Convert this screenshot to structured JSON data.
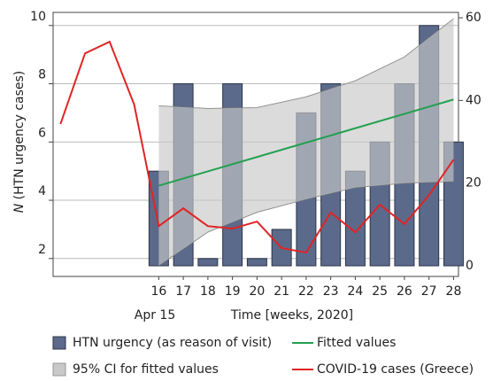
{
  "chart_data": {
    "type": "combo",
    "y_label_var": "N",
    "y_label": "(HTN urgency cases)",
    "x_label": "Time [weeks, 2020]",
    "x_annotation": "Apr 15",
    "xlim": [
      11.7,
      28.2
    ],
    "xticks": [
      16,
      17,
      18,
      19,
      20,
      21,
      22,
      23,
      24,
      25,
      26,
      27,
      28
    ],
    "ylim": [
      1.75,
      10.45
    ],
    "yticks": [
      2,
      4,
      6,
      8,
      10
    ],
    "y2lim": [
      0,
      61.3
    ],
    "y2ticks": [
      0,
      20,
      40,
      60
    ],
    "grid": true,
    "series": [
      {
        "name": "HTN urgency (as reason of visit)",
        "type": "bar",
        "color": "#5b6a8a",
        "x": [
          16,
          17,
          18,
          19,
          20,
          21,
          22,
          23,
          24,
          25,
          26,
          27,
          28
        ],
        "values": [
          5,
          8,
          2,
          8,
          2,
          3,
          7,
          8,
          5,
          6,
          8,
          10,
          6
        ]
      },
      {
        "name": "Fitted values",
        "type": "line",
        "color": "#22a050",
        "x": [
          16,
          28
        ],
        "values": [
          4.5,
          7.46
        ]
      },
      {
        "name": "95% CI for fitted values",
        "type": "band",
        "color": "#c8c8c8",
        "x": [
          16,
          18,
          20,
          22,
          24,
          26,
          28
        ],
        "upper": [
          7.24,
          7.15,
          7.18,
          7.55,
          8.1,
          8.92,
          10.23
        ],
        "lower": [
          1.76,
          2.91,
          3.59,
          4.04,
          4.44,
          4.59,
          4.65
        ]
      },
      {
        "name": "COVID-19 cases (Greece)",
        "type": "line",
        "color": "#e02424",
        "axis": "y2",
        "x": [
          12,
          13,
          14,
          15,
          16,
          17,
          18,
          19,
          20,
          21,
          22,
          23,
          24,
          25,
          26,
          27,
          28
        ],
        "values": [
          34.3,
          51.4,
          54.2,
          39,
          9.6,
          13.9,
          9.6,
          9,
          10.7,
          4.3,
          3.2,
          12.9,
          8.1,
          14.8,
          10.1,
          17.1,
          25.7
        ]
      }
    ]
  }
}
